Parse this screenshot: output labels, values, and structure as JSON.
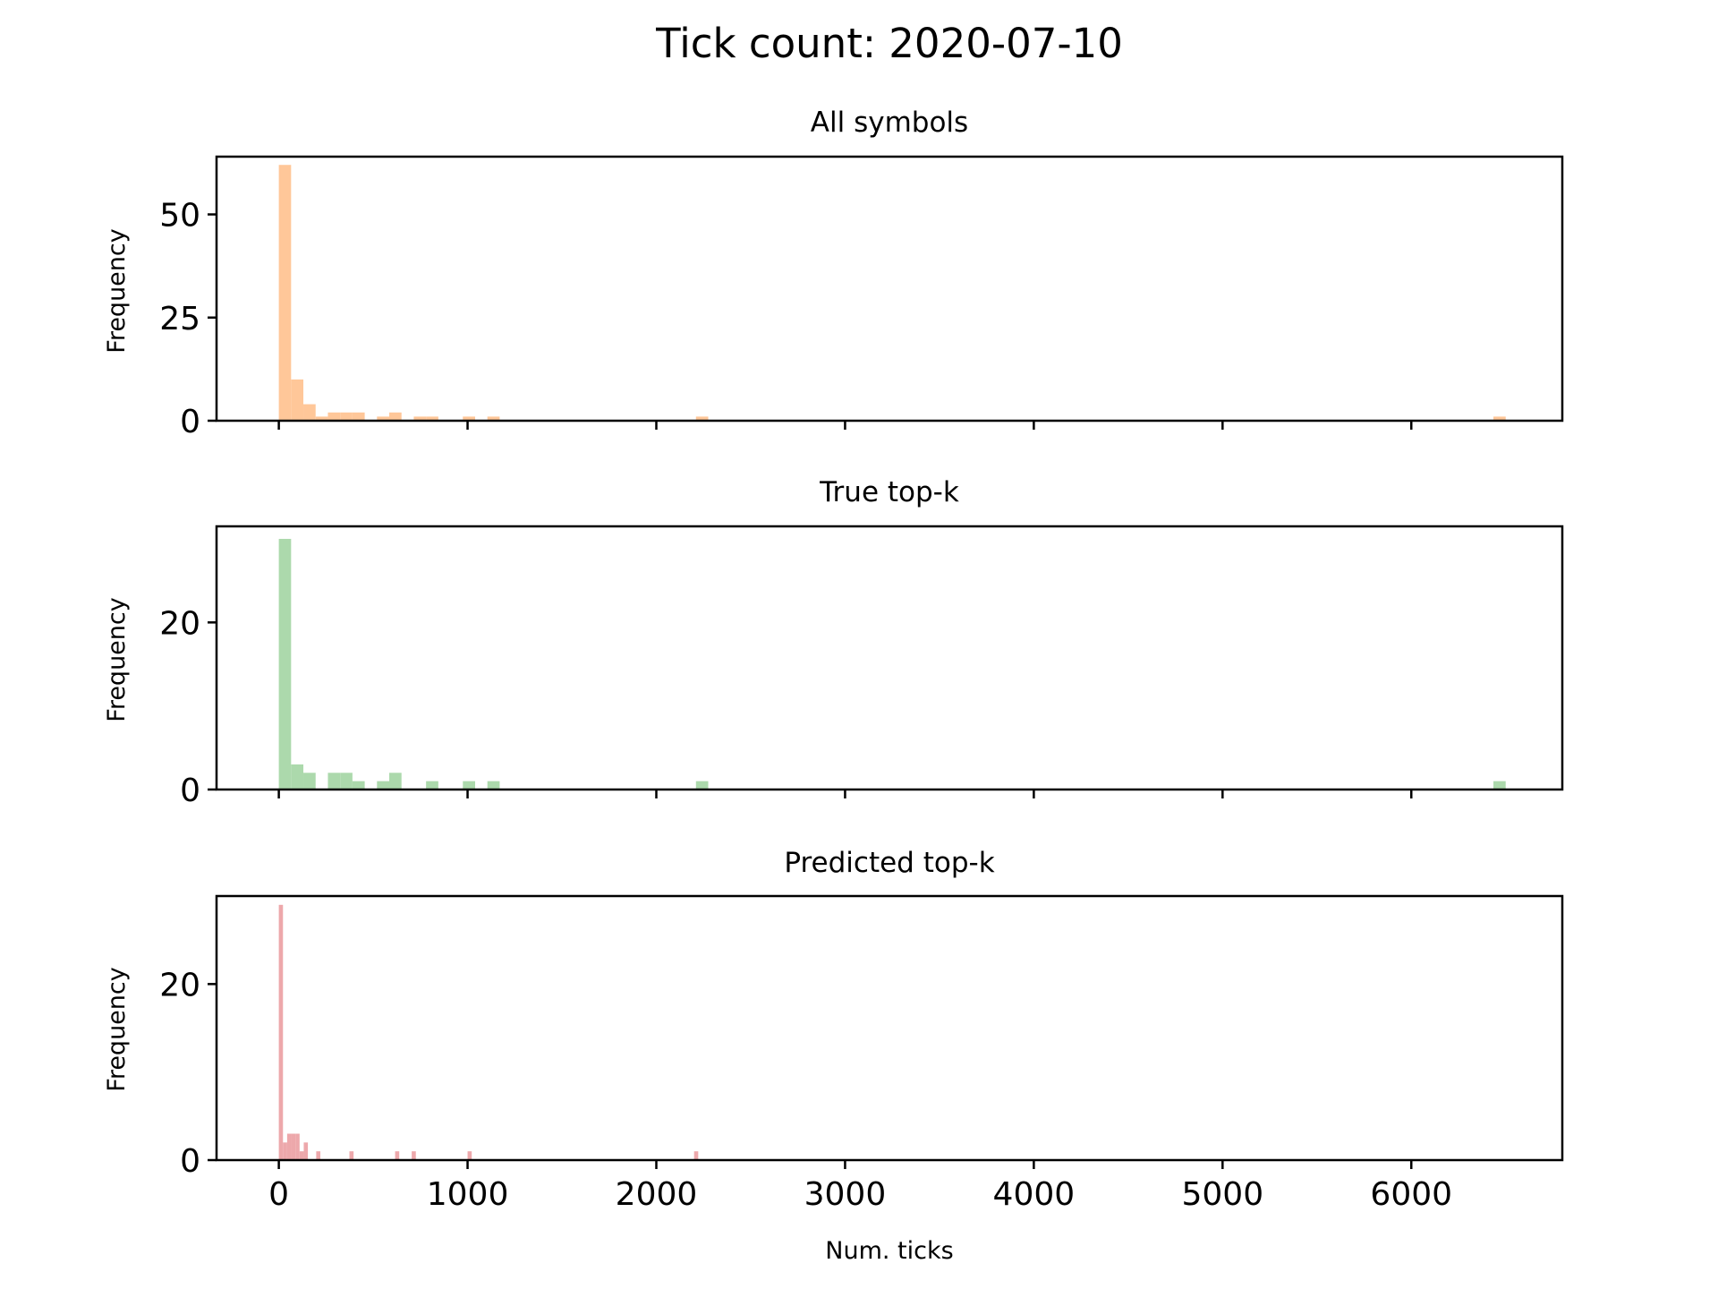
{
  "figure": {
    "title": "Tick count: 2020-07-10",
    "background": "#ffffff"
  },
  "chart_data": [
    {
      "type": "bar",
      "subtype": "histogram",
      "title": "All symbols",
      "xlabel": "",
      "ylabel": "Frequency",
      "color": "#ffc799",
      "xlim": [
        -330,
        6800
      ],
      "ylim": [
        0,
        64
      ],
      "yticks": [
        0,
        25,
        50
      ],
      "xticks": [
        0,
        1000,
        2000,
        3000,
        4000,
        5000,
        6000
      ],
      "x_ticklabels_visible": false,
      "bins": [
        {
          "x0": 0,
          "x1": 65,
          "y": 62
        },
        {
          "x0": 65,
          "x1": 130,
          "y": 10
        },
        {
          "x0": 130,
          "x1": 195,
          "y": 4
        },
        {
          "x0": 195,
          "x1": 260,
          "y": 1
        },
        {
          "x0": 260,
          "x1": 325,
          "y": 2
        },
        {
          "x0": 325,
          "x1": 390,
          "y": 2
        },
        {
          "x0": 390,
          "x1": 455,
          "y": 2
        },
        {
          "x0": 520,
          "x1": 585,
          "y": 1
        },
        {
          "x0": 585,
          "x1": 650,
          "y": 2
        },
        {
          "x0": 715,
          "x1": 780,
          "y": 1
        },
        {
          "x0": 780,
          "x1": 845,
          "y": 1
        },
        {
          "x0": 975,
          "x1": 1040,
          "y": 1
        },
        {
          "x0": 1105,
          "x1": 1170,
          "y": 1
        },
        {
          "x0": 2210,
          "x1": 2275,
          "y": 1
        },
        {
          "x0": 6435,
          "x1": 6500,
          "y": 1
        }
      ]
    },
    {
      "type": "bar",
      "subtype": "histogram",
      "title": "True top-k",
      "xlabel": "",
      "ylabel": "Frequency",
      "color": "#acd9ac",
      "xlim": [
        -330,
        6800
      ],
      "ylim": [
        0,
        31.5
      ],
      "yticks": [
        0,
        20
      ],
      "xticks": [
        0,
        1000,
        2000,
        3000,
        4000,
        5000,
        6000
      ],
      "x_ticklabels_visible": false,
      "bins": [
        {
          "x0": 0,
          "x1": 65,
          "y": 30
        },
        {
          "x0": 65,
          "x1": 130,
          "y": 3
        },
        {
          "x0": 130,
          "x1": 195,
          "y": 2
        },
        {
          "x0": 260,
          "x1": 325,
          "y": 2
        },
        {
          "x0": 325,
          "x1": 390,
          "y": 2
        },
        {
          "x0": 390,
          "x1": 455,
          "y": 1
        },
        {
          "x0": 520,
          "x1": 585,
          "y": 1
        },
        {
          "x0": 585,
          "x1": 650,
          "y": 2
        },
        {
          "x0": 780,
          "x1": 845,
          "y": 1
        },
        {
          "x0": 975,
          "x1": 1040,
          "y": 1
        },
        {
          "x0": 1105,
          "x1": 1170,
          "y": 1
        },
        {
          "x0": 2210,
          "x1": 2275,
          "y": 1
        },
        {
          "x0": 6435,
          "x1": 6500,
          "y": 1
        }
      ]
    },
    {
      "type": "bar",
      "subtype": "histogram",
      "title": "Predicted top-k",
      "xlabel": "Num. ticks",
      "ylabel": "Frequency",
      "color": "#eda8ab",
      "xlim": [
        -330,
        6800
      ],
      "ylim": [
        0,
        30
      ],
      "yticks": [
        0,
        20
      ],
      "xticks": [
        0,
        1000,
        2000,
        3000,
        4000,
        5000,
        6000
      ],
      "x_ticklabels_visible": true,
      "bins": [
        {
          "x0": 0,
          "x1": 22,
          "y": 29
        },
        {
          "x0": 22,
          "x1": 44,
          "y": 2
        },
        {
          "x0": 44,
          "x1": 66,
          "y": 3
        },
        {
          "x0": 66,
          "x1": 88,
          "y": 3
        },
        {
          "x0": 88,
          "x1": 110,
          "y": 3
        },
        {
          "x0": 110,
          "x1": 132,
          "y": 1
        },
        {
          "x0": 132,
          "x1": 154,
          "y": 2
        },
        {
          "x0": 198,
          "x1": 220,
          "y": 1
        },
        {
          "x0": 374,
          "x1": 396,
          "y": 1
        },
        {
          "x0": 616,
          "x1": 638,
          "y": 1
        },
        {
          "x0": 704,
          "x1": 726,
          "y": 1
        },
        {
          "x0": 1000,
          "x1": 1022,
          "y": 1
        },
        {
          "x0": 2200,
          "x1": 2222,
          "y": 1
        }
      ]
    }
  ]
}
